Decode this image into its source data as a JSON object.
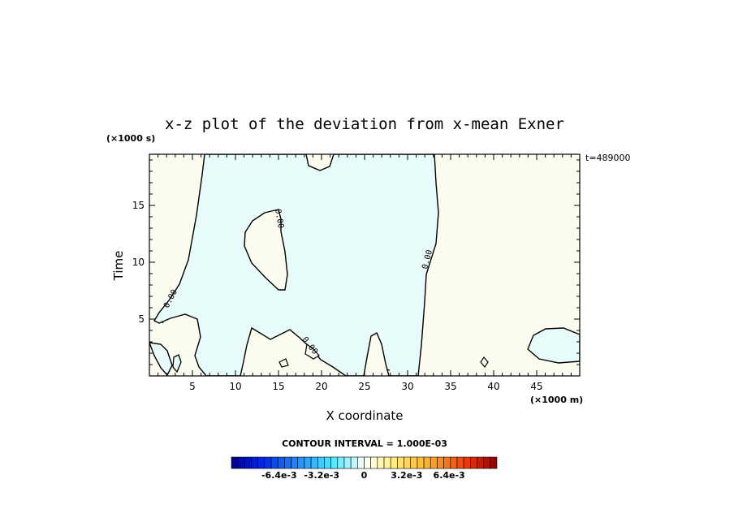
{
  "chart_data": {
    "type": "contour",
    "title": "x-z plot of the deviation from x-mean Exner",
    "xlabel": "X coordinate",
    "ylabel": "Time",
    "x_units": "(×1000 m)",
    "y_units": "(×1000 s)",
    "xlim": [
      0,
      50
    ],
    "ylim": [
      0,
      19.5
    ],
    "x_ticks": [
      5,
      10,
      15,
      20,
      25,
      30,
      35,
      40,
      45
    ],
    "y_ticks": [
      5,
      10,
      15
    ],
    "time_stamp": "t=489000",
    "contour_interval": "CONTOUR INTERVAL = 1.000E-03",
    "contour_labels": [
      "0.00",
      "0.00",
      "0.00",
      "0.00"
    ],
    "colorbar": {
      "tick_labels": [
        "-6.4e-3",
        "-3.2e-3",
        "0",
        "3.2e-3",
        "6.4e-3"
      ],
      "tick_values": [
        -0.0064,
        -0.0032,
        0,
        0.0032,
        0.0064
      ],
      "range": [
        -0.01,
        0.01
      ],
      "n_levels": 40
    },
    "colors": {
      "negative_fill": "#e8fbfb",
      "positive_fill": "#fbfbef",
      "contour_line": "#000000"
    }
  }
}
